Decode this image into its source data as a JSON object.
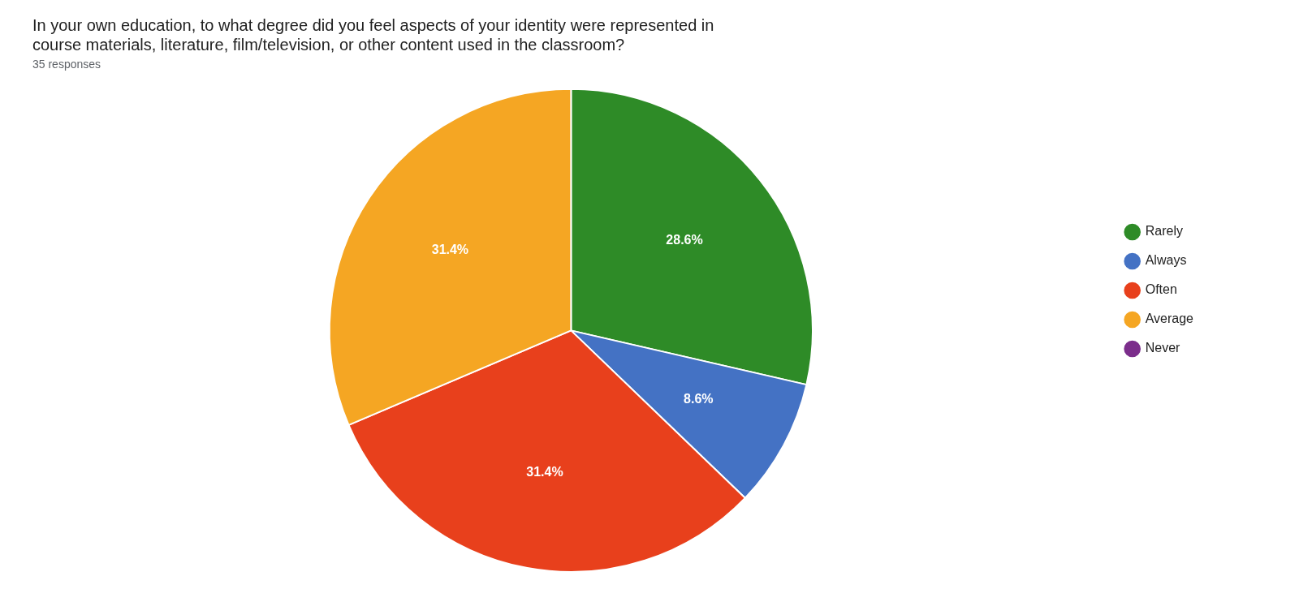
{
  "chart_data": {
    "type": "pie",
    "title": [
      "In your own education, to what degree did you feel aspects of your identity were represented in",
      "course materials, literature, film/television, or other content used in the classroom?"
    ],
    "subtitle": "35 responses",
    "categories": [
      "Rarely",
      "Always",
      "Often",
      "Average",
      "Never"
    ],
    "values": [
      28.6,
      8.6,
      31.4,
      31.4,
      0.0
    ],
    "value_labels": [
      "28.6%",
      "8.6%",
      "31.4%",
      "31.4%",
      null
    ],
    "colors": [
      "#2E8B27",
      "#4472C4",
      "#E8401C",
      "#F5A623",
      "#7B2D8B"
    ],
    "data_labels": true,
    "legend": "right"
  }
}
